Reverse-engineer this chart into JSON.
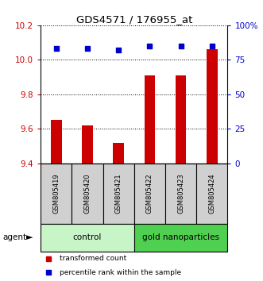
{
  "title": "GDS4571 / 176955_at",
  "samples": [
    "GSM805419",
    "GSM805420",
    "GSM805421",
    "GSM805422",
    "GSM805423",
    "GSM805424"
  ],
  "red_values": [
    9.65,
    9.62,
    9.52,
    9.91,
    9.91,
    10.06
  ],
  "blue_values": [
    83,
    83,
    82,
    85,
    85,
    85
  ],
  "ylim_left": [
    9.4,
    10.2
  ],
  "ylim_right": [
    0,
    100
  ],
  "yticks_left": [
    9.4,
    9.6,
    9.8,
    10.0,
    10.2
  ],
  "yticks_right": [
    0,
    25,
    50,
    75,
    100
  ],
  "ytick_labels_right": [
    "0",
    "25",
    "50",
    "75",
    "100%"
  ],
  "groups": [
    {
      "label": "control",
      "indices": [
        0,
        1,
        2
      ],
      "color": "#c8f5c8"
    },
    {
      "label": "gold nanoparticles",
      "indices": [
        3,
        4,
        5
      ],
      "color": "#50d050"
    }
  ],
  "red_color": "#cc0000",
  "blue_color": "#0000cc",
  "bar_bottom": 9.4,
  "legend_red": "transformed count",
  "legend_blue": "percentile rank within the sample",
  "agent_label": "agent",
  "bg_color": "#ffffff",
  "sample_box_color": "#d0d0d0"
}
